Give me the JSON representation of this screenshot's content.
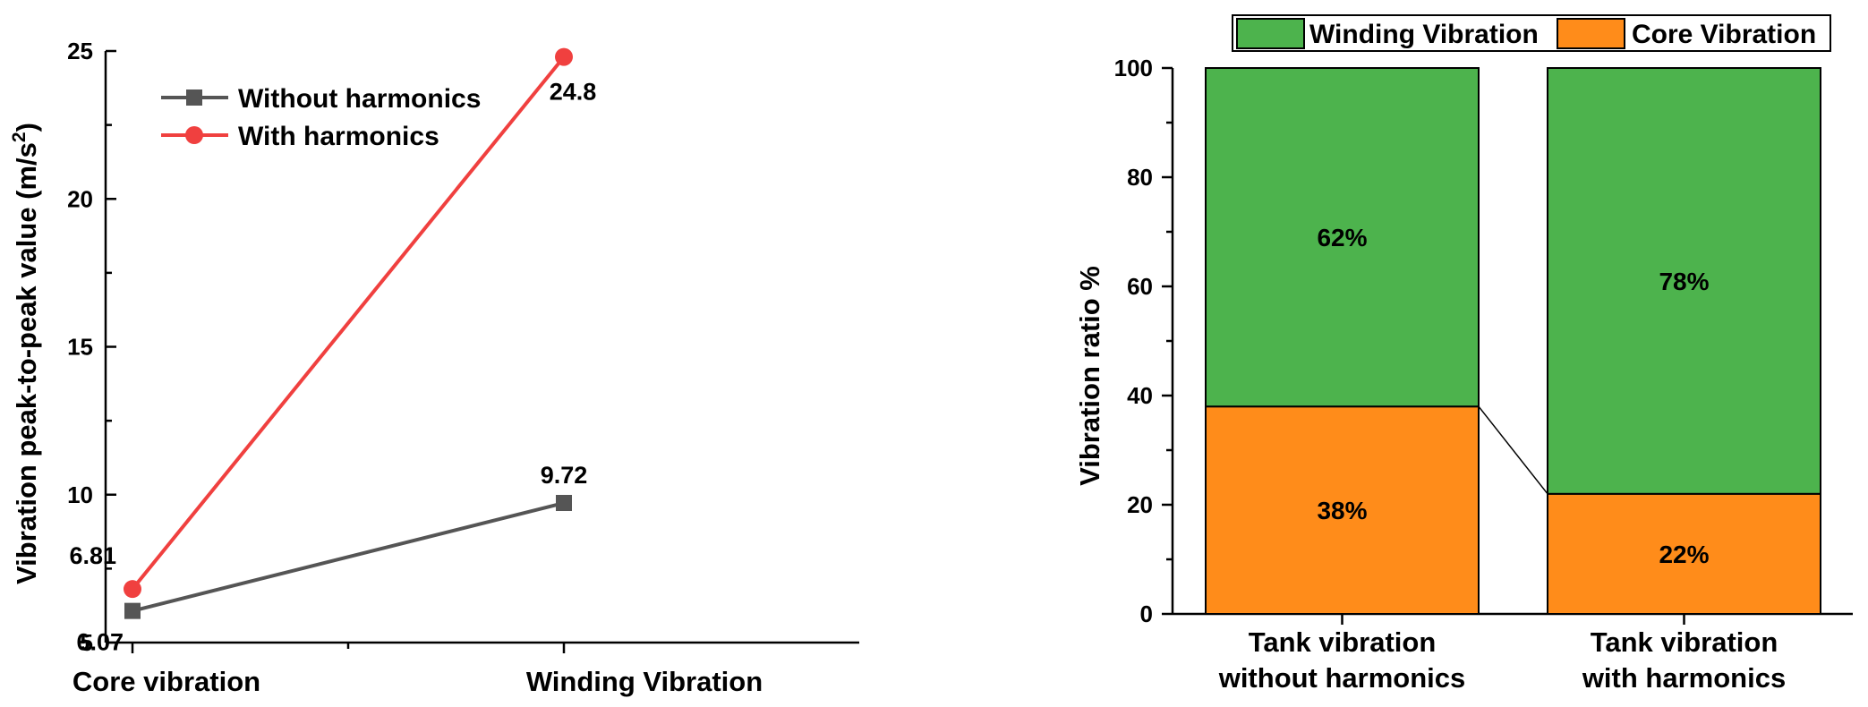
{
  "chart_data": [
    {
      "type": "line",
      "categories": [
        "Core vibration",
        "Winding Vibration"
      ],
      "series": [
        {
          "name": "Without harmonics",
          "values": [
            6.07,
            9.72
          ],
          "color": "#555555",
          "marker": "square",
          "labels": [
            "6.07",
            "9.72"
          ]
        },
        {
          "name": "With harmonics",
          "values": [
            6.81,
            24.8
          ],
          "color": "#f0403f",
          "marker": "circle",
          "labels": [
            "6.81",
            "24.8"
          ]
        }
      ],
      "ylabel_main": "Vibration peak-to-peak value (m/s",
      "ylabel_sup": "2",
      "ylabel_close": ")",
      "ylim": [
        5,
        25
      ],
      "yticks": [
        "5",
        "10",
        "15",
        "20",
        "25"
      ],
      "legend_position": "top-left"
    },
    {
      "type": "bar",
      "stacked": true,
      "categories": [
        {
          "line1": "Tank vibration",
          "line2": "without harmonics"
        },
        {
          "line1": "Tank vibration",
          "line2": "with harmonics"
        }
      ],
      "series": [
        {
          "name": "Core Vibration",
          "values": [
            38,
            22
          ],
          "labels": [
            "38%",
            "22%"
          ],
          "color": "#ff8c1a"
        },
        {
          "name": "Winding Vibration",
          "values": [
            62,
            78
          ],
          "labels": [
            "62%",
            "78%"
          ],
          "color": "#4db34d"
        }
      ],
      "legend_order": [
        1,
        0
      ],
      "ylabel": "Vibration ratio %",
      "ylim": [
        0,
        100
      ],
      "yticks": [
        "0",
        "20",
        "40",
        "60",
        "80",
        "100"
      ],
      "legend_position": "top"
    }
  ]
}
